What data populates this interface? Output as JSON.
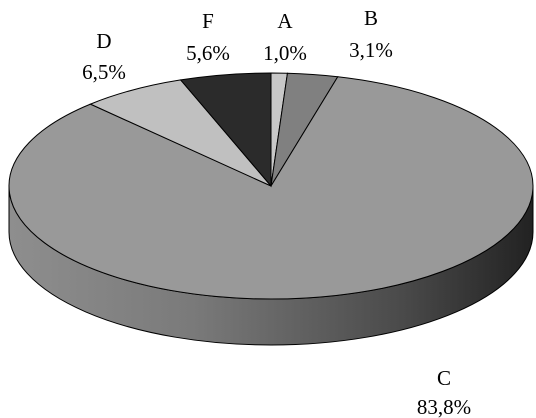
{
  "chart_data": {
    "type": "pie",
    "title": "",
    "three_d": true,
    "legend": "none",
    "slices": [
      {
        "name": "A",
        "value": 1.0,
        "label": "1,0%",
        "color": "#c8c8c8"
      },
      {
        "name": "B",
        "value": 3.1,
        "label": "3,1%",
        "color": "#808080"
      },
      {
        "name": "C",
        "value": 83.8,
        "label": "83,8%",
        "color": "#999999"
      },
      {
        "name": "D",
        "value": 6.5,
        "label": "6,5%",
        "color": "#c0c0c0"
      },
      {
        "name": "F",
        "value": 5.6,
        "label": "5,6%",
        "color": "#2b2b2b"
      }
    ]
  }
}
